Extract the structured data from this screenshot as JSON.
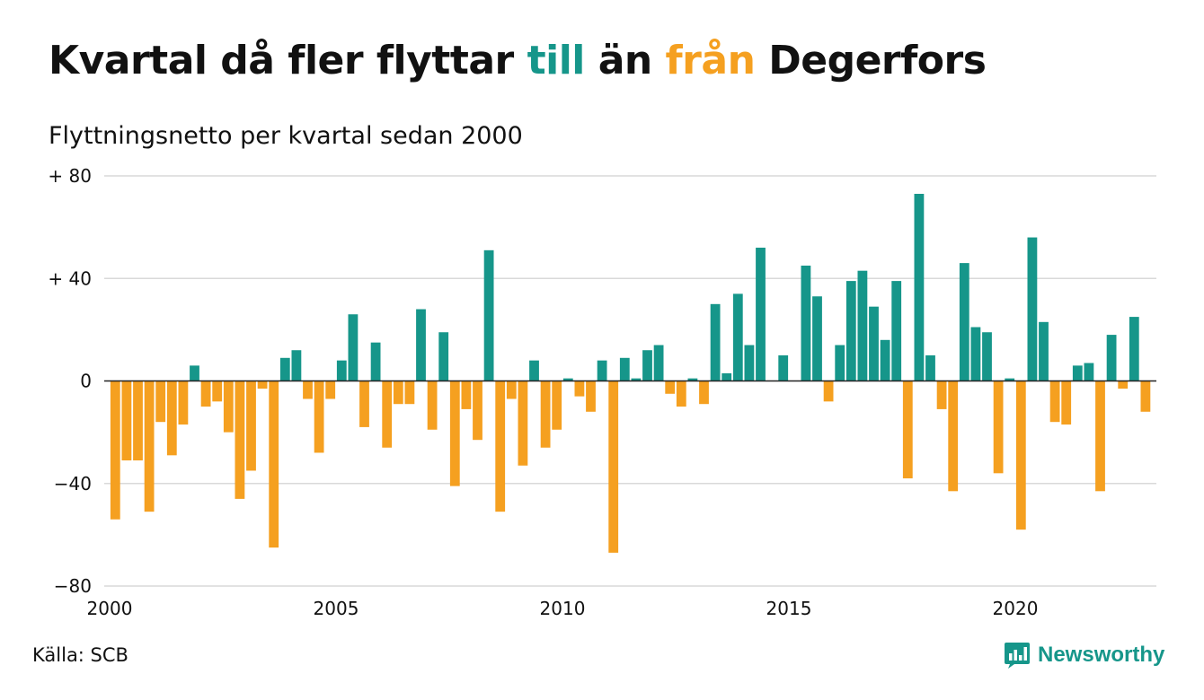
{
  "title": {
    "part1": "Kvartal då fler flyttar",
    "in_word": "till",
    "middle": "än",
    "out_word": "från",
    "part2": "Degerfors"
  },
  "subtitle": "Flyttningsnetto per kvartal sedan 2000",
  "source": "Källa: SCB",
  "brand": "Newsworthy",
  "colors": {
    "positive": "#16968a",
    "negative": "#f5a020",
    "grid": "#d9d9d9"
  },
  "chart_data": {
    "type": "bar",
    "x_start": 2000,
    "x_step": 0.25,
    "xlim": [
      2000,
      2023.25
    ],
    "ylim": [
      -80,
      80
    ],
    "yticks": [
      80,
      40,
      0,
      -40,
      -80
    ],
    "ytick_labels": [
      "+ 80",
      "+ 40",
      "0",
      "−40",
      "−80"
    ],
    "xticks": [
      2000,
      2005,
      2010,
      2015,
      2020
    ],
    "xtick_labels": [
      "2000",
      "2005",
      "2010",
      "2015",
      "2020"
    ],
    "grid": "horizontal",
    "values": [
      -54,
      -31,
      -31,
      -51,
      -16,
      -29,
      -17,
      6,
      -10,
      -8,
      -20,
      -46,
      -35,
      -3,
      -65,
      9,
      12,
      -7,
      -28,
      -7,
      8,
      26,
      -18,
      15,
      -26,
      -9,
      -9,
      28,
      -19,
      19,
      -41,
      -11,
      -23,
      51,
      -51,
      -7,
      -33,
      8,
      -26,
      -19,
      1,
      -6,
      -12,
      8,
      -67,
      9,
      1,
      12,
      14,
      -5,
      -10,
      1,
      -9,
      30,
      3,
      34,
      14,
      52,
      0,
      10,
      0,
      45,
      33,
      -8,
      14,
      39,
      43,
      29,
      16,
      39,
      -38,
      73,
      10,
      -11,
      -43,
      46,
      21,
      19,
      -36,
      1,
      -58,
      56,
      23,
      -16,
      -17,
      6,
      7,
      -43,
      18,
      -3,
      25,
      -12
    ]
  }
}
